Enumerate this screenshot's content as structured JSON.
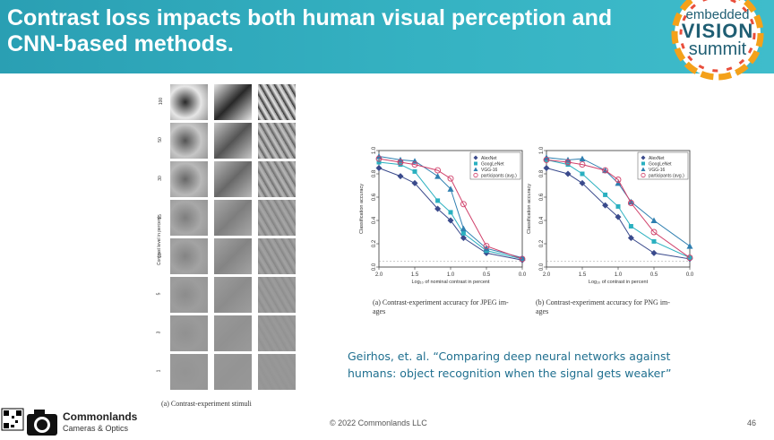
{
  "slide": {
    "title": "Contrast loss impacts both human visual perception and CNN-based methods.",
    "logo": {
      "line1": "embedded",
      "line2": "VISION",
      "line3": "summit"
    },
    "quote": "Geirhos, et. al. “Comparing deep neural networks against humans: object recognition when the signal gets weaker”",
    "footer": "© 2022 Commonlands LLC",
    "page_number": "46",
    "brand": {
      "name": "Commonlands",
      "tagline": "Cameras & Optics"
    },
    "colors": {
      "header": "#35b2c2",
      "quote": "#1f6f8f",
      "alexnet": "#3a4a8c",
      "googlenet": "#2ab0c0",
      "vgg": "#2f7fb0",
      "participants": "#d0406a"
    }
  },
  "stimuli": {
    "ylabel": "Contrast level in percent",
    "levels": [
      "100",
      "50",
      "30",
      "15",
      "10",
      "5",
      "3",
      "1"
    ],
    "caption": "(a) Contrast-experiment stimuli"
  },
  "chart_data": [
    {
      "type": "line",
      "panel": "jpeg",
      "caption_line1": "(a) Contrast-experiment accuracy for JPEG im-",
      "caption_line2": "ages",
      "xlabel": "Log₁₀ of nominal contrast in percent",
      "ylabel": "Classification accuracy",
      "x": [
        2.0,
        1.7,
        1.5,
        1.18,
        1.0,
        0.82,
        0.5,
        0.0
      ],
      "xlim": [
        2.0,
        0.0
      ],
      "ylim": [
        0.0,
        1.0
      ],
      "xticks": [
        "2.0",
        "1.5",
        "1.0",
        "0.5",
        "0.0"
      ],
      "yticks": [
        "0.0",
        "0.2",
        "0.4",
        "0.6",
        "0.8",
        "1.0"
      ],
      "series": [
        {
          "name": "AlexNet",
          "values": [
            0.85,
            0.78,
            0.72,
            0.5,
            0.4,
            0.25,
            0.12,
            0.06
          ]
        },
        {
          "name": "GoogLeNet",
          "values": [
            0.9,
            0.88,
            0.82,
            0.57,
            0.47,
            0.29,
            0.14,
            0.07
          ]
        },
        {
          "name": "VGG-16",
          "values": [
            0.95,
            0.92,
            0.91,
            0.78,
            0.67,
            0.33,
            0.16,
            0.08
          ]
        },
        {
          "name": "participants (avg.)",
          "values": [
            0.93,
            0.9,
            0.88,
            0.83,
            0.76,
            0.54,
            0.18,
            0.07
          ]
        }
      ]
    },
    {
      "type": "line",
      "panel": "png",
      "caption_line1": "(b) Contrast-experiment accuracy for PNG im-",
      "caption_line2": "ages",
      "xlabel": "Log₁₀ of contrast in percent",
      "ylabel": "Classification accuracy",
      "x": [
        2.0,
        1.7,
        1.5,
        1.18,
        1.0,
        0.82,
        0.5,
        0.0
      ],
      "xlim": [
        2.0,
        0.0
      ],
      "ylim": [
        0.0,
        1.0
      ],
      "xticks": [
        "2.0",
        "1.5",
        "1.0",
        "0.5",
        "0.0"
      ],
      "yticks": [
        "0.0",
        "0.2",
        "0.4",
        "0.6",
        "0.8",
        "1.0"
      ],
      "series": [
        {
          "name": "AlexNet",
          "values": [
            0.85,
            0.8,
            0.72,
            0.53,
            0.43,
            0.25,
            0.12,
            0.07
          ]
        },
        {
          "name": "GoogLeNet",
          "values": [
            0.92,
            0.88,
            0.8,
            0.62,
            0.52,
            0.35,
            0.22,
            0.08
          ]
        },
        {
          "name": "VGG-16",
          "values": [
            0.94,
            0.92,
            0.93,
            0.83,
            0.72,
            0.56,
            0.4,
            0.18
          ]
        },
        {
          "name": "participants (avg.)",
          "values": [
            0.92,
            0.9,
            0.88,
            0.83,
            0.75,
            0.55,
            0.3,
            0.08
          ]
        }
      ]
    }
  ]
}
